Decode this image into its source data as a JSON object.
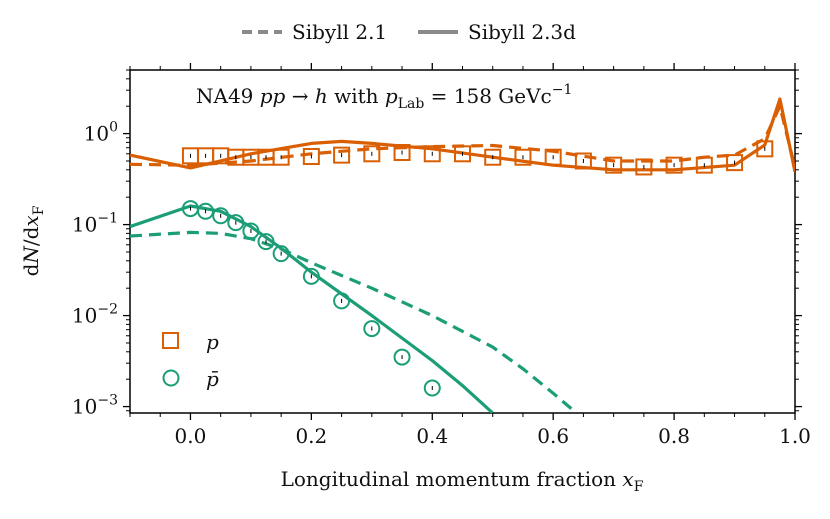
{
  "chart_data": {
    "type": "line",
    "title": "",
    "annotation": "NA49 pp → h with p_Lab = 158 GeVc⁻¹",
    "annotation_parts": {
      "prefix": "NA49 ",
      "reaction": "pp → h",
      "mid": " with ",
      "plab": "p",
      "plab_sub": "Lab",
      "value": " = 158 GeVc",
      "exp": "−1"
    },
    "xlabel": "Longitudinal momentum fraction x_F",
    "xlabel_parts": {
      "text": "Longitudinal momentum fraction ",
      "var": "x",
      "sub": "F"
    },
    "ylabel": "dN/dx_F",
    "ylabel_parts": {
      "d": "d",
      "N": "N",
      "slash": "/d",
      "x": "x",
      "sub": "F"
    },
    "xlim": [
      -0.1,
      1.0
    ],
    "ylim": [
      0.00085,
      5.0
    ],
    "yscale": "log",
    "xticks": [
      0.0,
      0.2,
      0.4,
      0.6,
      0.8,
      1.0
    ],
    "xtick_labels": [
      "0.0",
      "0.2",
      "0.4",
      "0.6",
      "0.8",
      "1.0"
    ],
    "yticks": [
      {
        "value": 1,
        "base": "10",
        "exp": "0"
      },
      {
        "value": 0.1,
        "base": "10",
        "exp": "−1"
      },
      {
        "value": 0.01,
        "base": "10",
        "exp": "−2"
      },
      {
        "value": 0.001,
        "base": "10",
        "exp": "−3"
      }
    ],
    "style_legend": [
      {
        "label": "Sibyll 2.1",
        "dash": "dashed"
      },
      {
        "label": "Sibyll 2.3d",
        "dash": "solid"
      }
    ],
    "particle_legend": [
      {
        "label": "p",
        "marker": "square",
        "color": "#d95f02"
      },
      {
        "label": "p̄",
        "marker": "circle",
        "color": "#1b9e77"
      }
    ],
    "series": [
      {
        "name": "p Sibyll 2.1",
        "color": "#d95f02",
        "dash": "dashed",
        "x": [
          -0.1,
          0.0,
          0.1,
          0.2,
          0.3,
          0.4,
          0.5,
          0.6,
          0.7,
          0.8,
          0.85,
          0.9,
          0.95,
          0.975,
          1.0
        ],
        "y": [
          0.46,
          0.45,
          0.5,
          0.6,
          0.68,
          0.72,
          0.74,
          0.64,
          0.5,
          0.5,
          0.55,
          0.58,
          0.88,
          2.0,
          0.42
        ]
      },
      {
        "name": "p Sibyll 2.3d",
        "color": "#d95f02",
        "dash": "solid",
        "x": [
          -0.1,
          0.0,
          0.1,
          0.2,
          0.25,
          0.3,
          0.4,
          0.5,
          0.6,
          0.7,
          0.8,
          0.9,
          0.95,
          0.975,
          1.0
        ],
        "y": [
          0.58,
          0.42,
          0.6,
          0.78,
          0.82,
          0.78,
          0.68,
          0.55,
          0.45,
          0.4,
          0.4,
          0.45,
          0.75,
          2.4,
          0.38
        ]
      },
      {
        "name": "p̄ Sibyll 2.1",
        "color": "#1b9e77",
        "dash": "dashed",
        "x": [
          -0.1,
          0.0,
          0.05,
          0.1,
          0.15,
          0.2,
          0.3,
          0.4,
          0.5,
          0.55,
          0.6,
          0.63
        ],
        "y": [
          0.075,
          0.082,
          0.08,
          0.07,
          0.054,
          0.038,
          0.02,
          0.01,
          0.0045,
          0.0026,
          0.0014,
          0.00095
        ]
      },
      {
        "name": "p̄ Sibyll 2.3d",
        "color": "#1b9e77",
        "dash": "solid",
        "x": [
          -0.1,
          0.0,
          0.05,
          0.1,
          0.15,
          0.2,
          0.3,
          0.4,
          0.45,
          0.5
        ],
        "y": [
          0.095,
          0.16,
          0.14,
          0.095,
          0.055,
          0.03,
          0.01,
          0.0032,
          0.0017,
          0.00085
        ]
      }
    ],
    "data_points": [
      {
        "name": "p NA49",
        "color": "#d95f02",
        "marker": "square",
        "x": [
          0.0,
          0.025,
          0.05,
          0.075,
          0.1,
          0.125,
          0.15,
          0.2,
          0.25,
          0.3,
          0.35,
          0.4,
          0.45,
          0.5,
          0.55,
          0.6,
          0.65,
          0.7,
          0.75,
          0.8,
          0.85,
          0.9,
          0.95
        ],
        "y": [
          0.57,
          0.57,
          0.57,
          0.55,
          0.55,
          0.55,
          0.55,
          0.56,
          0.58,
          0.6,
          0.62,
          0.6,
          0.6,
          0.55,
          0.55,
          0.55,
          0.5,
          0.45,
          0.43,
          0.45,
          0.45,
          0.48,
          0.68
        ]
      },
      {
        "name": "p̄ NA49",
        "color": "#1b9e77",
        "marker": "circle",
        "x": [
          0.0,
          0.025,
          0.05,
          0.075,
          0.1,
          0.125,
          0.15,
          0.2,
          0.25,
          0.3,
          0.35,
          0.4
        ],
        "y": [
          0.15,
          0.14,
          0.125,
          0.105,
          0.085,
          0.065,
          0.048,
          0.027,
          0.0145,
          0.0072,
          0.0035,
          0.0016
        ]
      }
    ]
  }
}
